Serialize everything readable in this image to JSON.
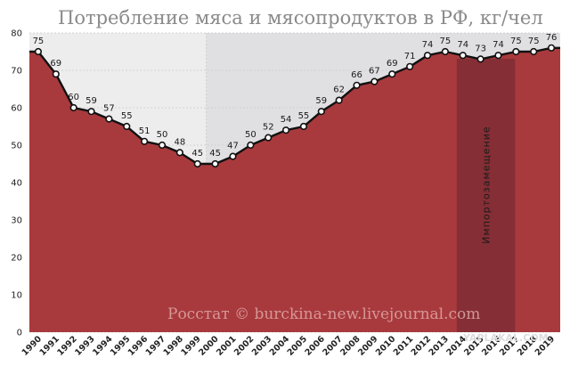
{
  "chart_data": {
    "type": "area",
    "title": "Потребление мяса и мясопродуктов в РФ, кг/чел",
    "x": [
      "1990",
      "1991",
      "1992",
      "1993",
      "1994",
      "1995",
      "1996",
      "1997",
      "1998",
      "1999",
      "2000",
      "2001",
      "2002",
      "2003",
      "2004",
      "2005",
      "2006",
      "2007",
      "2008",
      "2009",
      "2010",
      "2011",
      "2012",
      "2013",
      "2014",
      "2015",
      "2016",
      "2017",
      "2018",
      "2019"
    ],
    "values": [
      75,
      69,
      60,
      59,
      57,
      55,
      51,
      50,
      48,
      45,
      45,
      47,
      50,
      52,
      54,
      55,
      59,
      62,
      66,
      67,
      69,
      71,
      74,
      75,
      74,
      73,
      74,
      75,
      75,
      76
    ],
    "ylim": [
      0,
      80
    ],
    "yticks": [
      0,
      10,
      20,
      30,
      40,
      50,
      60,
      70,
      80
    ],
    "highlight_band": {
      "from": "2014",
      "to": "2017",
      "label": "Импортозамещение"
    },
    "shaded_background": {
      "from": "2000",
      "to": "2019"
    },
    "credit": "Росстат © burckina-new.livejournal.com",
    "watermark": "YAPLAKAL.COM",
    "colors": {
      "area": "#a83a3d",
      "band": "#7f2d34",
      "line": "#111111",
      "marker_fill": "#ffffff",
      "bg_left": "#ededed",
      "bg_right": "#e0e0e3"
    }
  }
}
